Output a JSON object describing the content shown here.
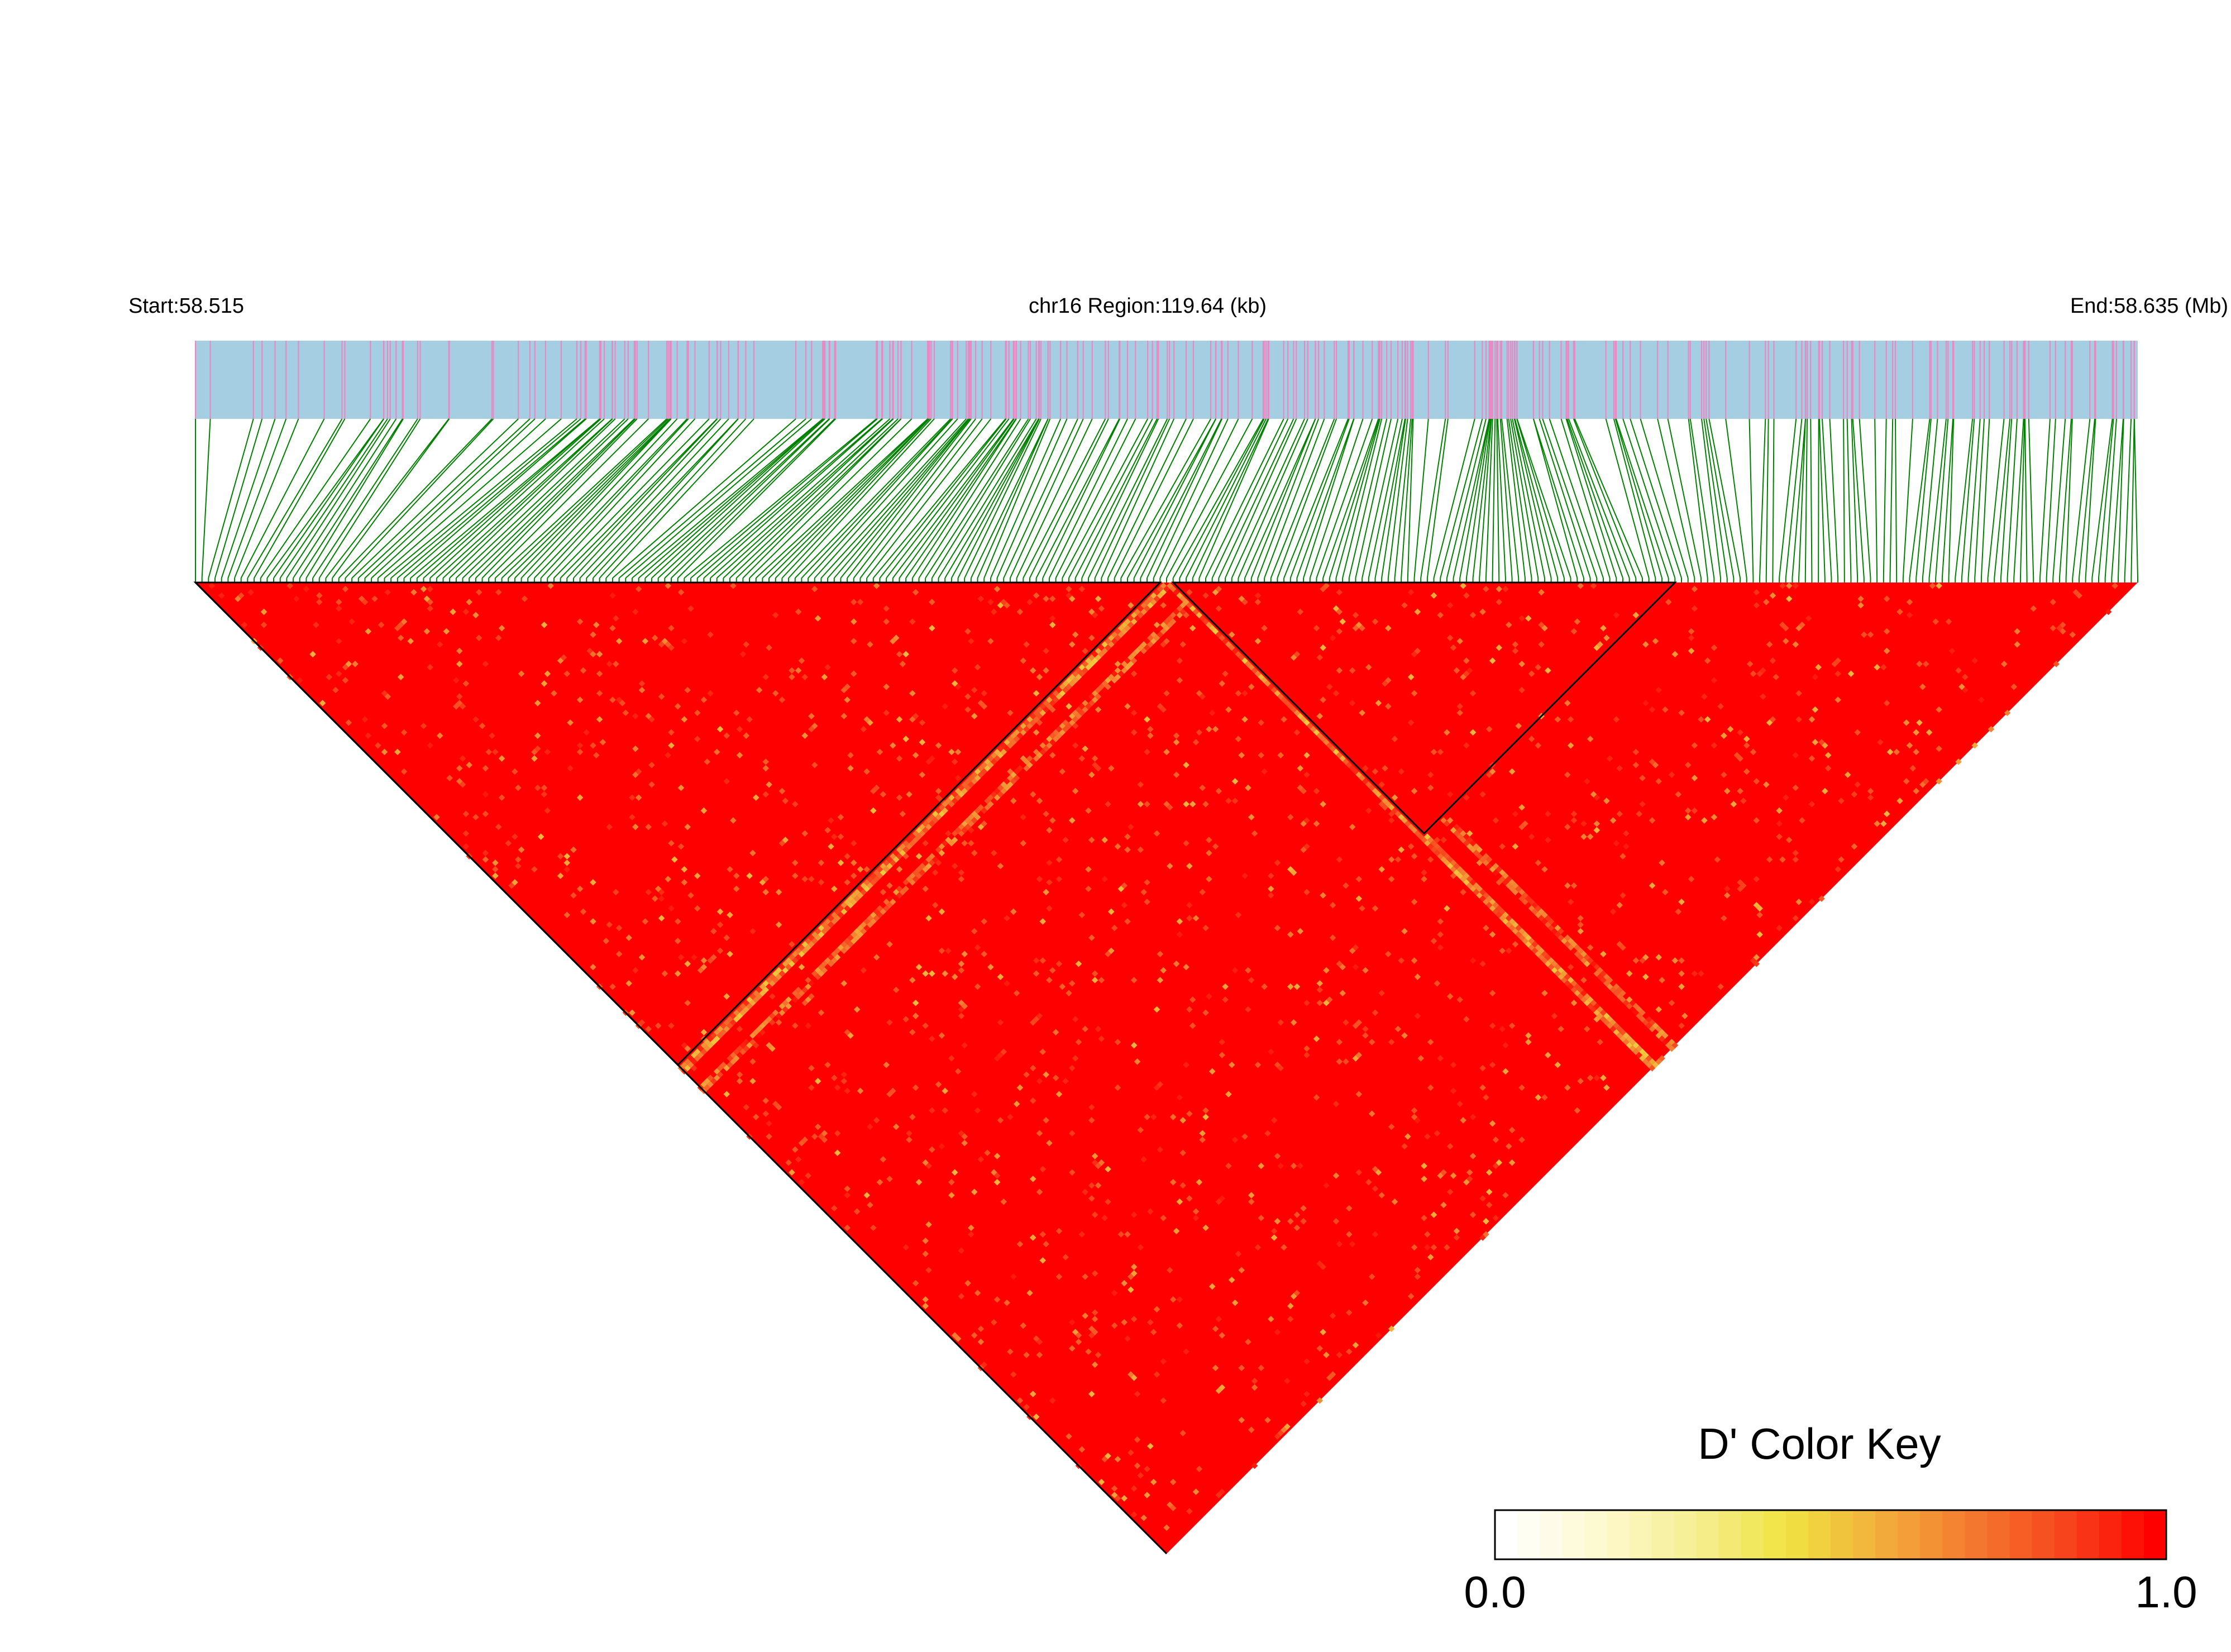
{
  "header": {
    "start_label": "Start:58.515",
    "region_label": "chr16 Region:119.64 (kb)",
    "end_label": "End:58.635 (Mb)"
  },
  "colors": {
    "track_background": "#a6cee3",
    "snp_tick": "#e78ac3",
    "connector": "#008000",
    "heatmap_high": "#ff0000",
    "heatmap_mid": "#f0e442",
    "heatmap_low": "#ffffff",
    "block_outline": "#000000"
  },
  "color_key": {
    "title": "D' Color Key",
    "min_label": "0.0",
    "max_label": "1.0",
    "stops": [
      "#ffffff",
      "#fdf9cf",
      "#f6ef95",
      "#f0e442",
      "#f2b13c",
      "#f47b30",
      "#f7461d",
      "#ff0000"
    ]
  },
  "chart_data": {
    "type": "heatmap",
    "description_kind": "LD triangle heatmap (pairwise D')",
    "chromosome": "chr16",
    "region_start_mb": 58.515,
    "region_end_mb": 58.635,
    "region_length_kb": 119.64,
    "value_range": [
      0.0,
      1.0
    ],
    "snp_count_estimate": 300,
    "snp_density_profile": [
      {
        "from_mb": 58.515,
        "to_mb": 58.532,
        "relative_density": "medium"
      },
      {
        "from_mb": 58.532,
        "to_mb": 58.556,
        "relative_density": "high"
      },
      {
        "from_mb": 58.556,
        "to_mb": 58.557,
        "relative_density": "none"
      },
      {
        "from_mb": 58.557,
        "to_mb": 58.6,
        "relative_density": "very high"
      },
      {
        "from_mb": 58.6,
        "to_mb": 58.635,
        "relative_density": "high"
      }
    ],
    "ld_blocks": [
      {
        "start_fraction": 0.0,
        "end_fraction": 0.495,
        "mean_dprime": 0.97
      },
      {
        "start_fraction": 0.505,
        "end_fraction": 0.761,
        "mean_dprime": 0.97
      }
    ],
    "low_dprime_bands": [
      {
        "snp_fraction": 0.5,
        "dprime": 0.5
      },
      {
        "snp_fraction": 0.52,
        "dprime": 0.6
      }
    ],
    "overall_dprime": 0.95
  }
}
